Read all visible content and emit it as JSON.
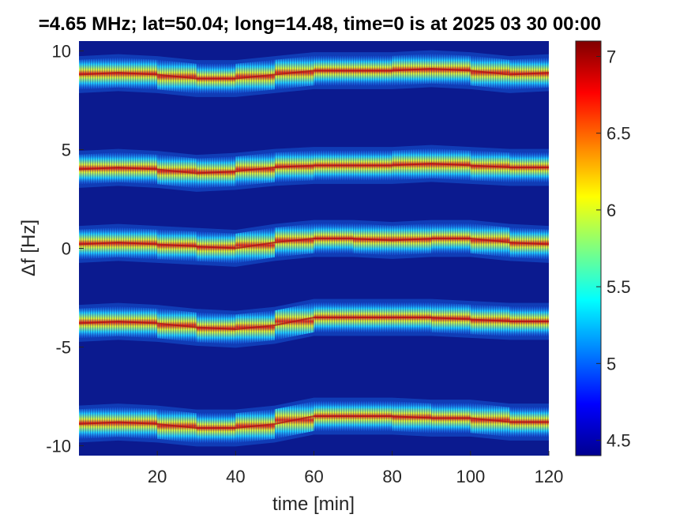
{
  "chart_data": {
    "type": "heatmap",
    "title": "=4.65 MHz;  lat=50.04; long=14.48, time=0 is at 2025 03 30 00:00",
    "xlabel": "time [min]",
    "ylabel": "Δf [Hz]",
    "xlim": [
      0,
      120
    ],
    "ylim": [
      -10.5,
      10.5
    ],
    "xticks": [
      20,
      40,
      60,
      80,
      100,
      120
    ],
    "xtick_labels": [
      "20",
      "40",
      "60",
      "80",
      "100",
      "120"
    ],
    "yticks": [
      10,
      5,
      0,
      -5,
      -10
    ],
    "ytick_labels": [
      "10",
      "5",
      "0",
      "-5",
      "-10"
    ],
    "colorbar": {
      "range": [
        4.4,
        7.1
      ],
      "ticks": [
        7,
        6.5,
        6,
        5.5,
        5,
        4.5
      ],
      "tick_labels": [
        "7",
        "6.5",
        "6",
        "5.5",
        "5",
        "4.5"
      ],
      "colormap": "jet"
    },
    "background_color": "#0b1a8f",
    "bands": [
      {
        "center_freq": 9,
        "points": [
          [
            0,
            8.8
          ],
          [
            10,
            8.9
          ],
          [
            20,
            8.8
          ],
          [
            30,
            8.6
          ],
          [
            40,
            8.6
          ],
          [
            50,
            8.8
          ],
          [
            60,
            9.0
          ],
          [
            70,
            9.0
          ],
          [
            80,
            9.0
          ],
          [
            90,
            9.1
          ],
          [
            100,
            9.0
          ],
          [
            110,
            8.8
          ],
          [
            120,
            8.9
          ]
        ]
      },
      {
        "center_freq": 4,
        "points": [
          [
            0,
            4.0
          ],
          [
            10,
            4.1
          ],
          [
            20,
            4.0
          ],
          [
            30,
            3.8
          ],
          [
            40,
            3.9
          ],
          [
            50,
            4.1
          ],
          [
            60,
            4.2
          ],
          [
            70,
            4.2
          ],
          [
            80,
            4.2
          ],
          [
            90,
            4.3
          ],
          [
            100,
            4.2
          ],
          [
            110,
            4.1
          ],
          [
            120,
            4.1
          ]
        ]
      },
      {
        "center_freq": 0,
        "points": [
          [
            0,
            0.2
          ],
          [
            10,
            0.3
          ],
          [
            20,
            0.2
          ],
          [
            30,
            0.1
          ],
          [
            40,
            0.0
          ],
          [
            50,
            0.3
          ],
          [
            60,
            0.5
          ],
          [
            70,
            0.5
          ],
          [
            80,
            0.4
          ],
          [
            90,
            0.5
          ],
          [
            100,
            0.5
          ],
          [
            110,
            0.3
          ],
          [
            120,
            0.2
          ]
        ]
      },
      {
        "center_freq": -4,
        "points": [
          [
            0,
            -3.8
          ],
          [
            10,
            -3.7
          ],
          [
            20,
            -3.8
          ],
          [
            30,
            -4.0
          ],
          [
            40,
            -4.1
          ],
          [
            50,
            -3.9
          ],
          [
            60,
            -3.5
          ],
          [
            70,
            -3.5
          ],
          [
            80,
            -3.5
          ],
          [
            90,
            -3.5
          ],
          [
            100,
            -3.6
          ],
          [
            110,
            -3.7
          ],
          [
            120,
            -3.7
          ]
        ]
      },
      {
        "center_freq": -9,
        "points": [
          [
            0,
            -8.9
          ],
          [
            10,
            -8.8
          ],
          [
            20,
            -8.9
          ],
          [
            30,
            -9.1
          ],
          [
            40,
            -9.1
          ],
          [
            50,
            -8.9
          ],
          [
            60,
            -8.5
          ],
          [
            70,
            -8.5
          ],
          [
            80,
            -8.5
          ],
          [
            90,
            -8.6
          ],
          [
            100,
            -8.6
          ],
          [
            110,
            -8.8
          ],
          [
            120,
            -8.8
          ]
        ]
      }
    ]
  }
}
